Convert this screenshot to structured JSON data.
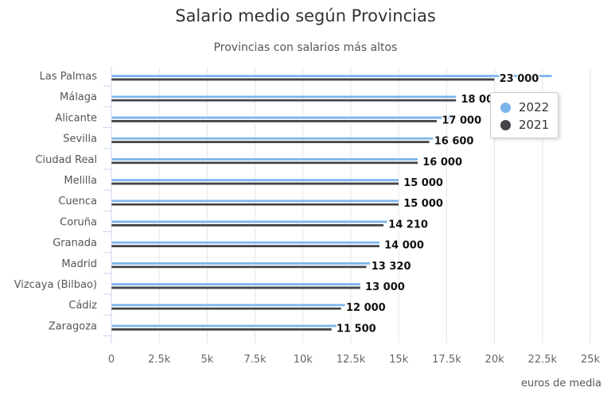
{
  "chart_data": {
    "type": "bar",
    "orientation": "horizontal",
    "title": "Salario medio según Provincias",
    "subtitle": "Provincias con salarios más altos",
    "xlabel": "euros de media",
    "ylabel": "",
    "xlim": [
      0,
      25000
    ],
    "x_ticks": [
      0,
      2500,
      5000,
      7500,
      10000,
      12500,
      15000,
      17500,
      20000,
      22500,
      25000
    ],
    "x_tick_labels": [
      "0",
      "2.5k",
      "5k",
      "7.5k",
      "10k",
      "12.5k",
      "15k",
      "17.5k",
      "20k",
      "22.5k",
      "25k"
    ],
    "grid": true,
    "legend_position": "right",
    "categories": [
      "Las Palmas",
      "Málaga",
      "Alicante",
      "Sevilla",
      "Ciudad Real",
      "Melilla",
      "Cuenca",
      "Coruña",
      "Granada",
      "Madrid",
      "Vizcaya (Bilbao)",
      "Cádiz",
      "Zaragoza"
    ],
    "series": [
      {
        "name": "2022",
        "color": "#7cb5ec",
        "values": [
          23000,
          18000,
          18000,
          16800,
          16000,
          15000,
          15000,
          14400,
          14000,
          13500,
          13000,
          12200,
          12000
        ]
      },
      {
        "name": "2021",
        "color": "#434348",
        "values": [
          20000,
          18000,
          17000,
          16600,
          16000,
          15000,
          15000,
          14210,
          14000,
          13320,
          13000,
          12000,
          11500
        ]
      }
    ],
    "data_labels": [
      "23 000",
      "18 000",
      "17 000",
      "16 600",
      "16 000",
      "15 000",
      "15 000",
      "14 210",
      "14 000",
      "13 320",
      "13 000",
      "12 000",
      "11 500"
    ]
  }
}
